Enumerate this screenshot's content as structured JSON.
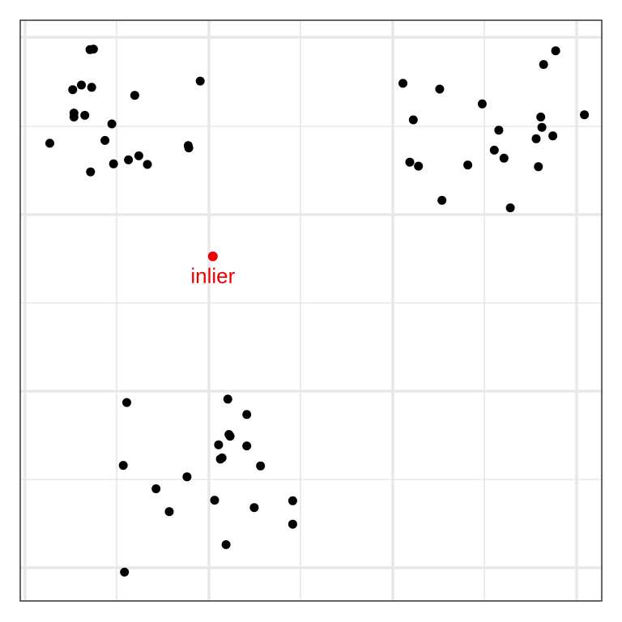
{
  "chart_data": {
    "type": "scatter",
    "grid": true,
    "xlim": [
      0,
      1
    ],
    "ylim": [
      0,
      1
    ],
    "colors": {
      "points": "#000000",
      "highlight": "#ee0000",
      "grid": "#e8e8e8",
      "frame": "#333333",
      "background": "#ffffff"
    },
    "points": [
      {
        "x": 0.113,
        "y": 0.957
      },
      {
        "x": 0.119,
        "y": 0.958
      },
      {
        "x": 0.083,
        "y": 0.887
      },
      {
        "x": 0.098,
        "y": 0.895
      },
      {
        "x": 0.116,
        "y": 0.891
      },
      {
        "x": 0.085,
        "y": 0.846
      },
      {
        "x": 0.085,
        "y": 0.839
      },
      {
        "x": 0.104,
        "y": 0.842
      },
      {
        "x": 0.043,
        "y": 0.793
      },
      {
        "x": 0.151,
        "y": 0.827
      },
      {
        "x": 0.191,
        "y": 0.877
      },
      {
        "x": 0.305,
        "y": 0.902
      },
      {
        "x": 0.139,
        "y": 0.798
      },
      {
        "x": 0.114,
        "y": 0.743
      },
      {
        "x": 0.154,
        "y": 0.757
      },
      {
        "x": 0.18,
        "y": 0.764
      },
      {
        "x": 0.198,
        "y": 0.771
      },
      {
        "x": 0.213,
        "y": 0.756
      },
      {
        "x": 0.284,
        "y": 0.789
      },
      {
        "x": 0.285,
        "y": 0.785
      },
      {
        "x": 0.658,
        "y": 0.898
      },
      {
        "x": 0.722,
        "y": 0.888
      },
      {
        "x": 0.676,
        "y": 0.834
      },
      {
        "x": 0.796,
        "y": 0.862
      },
      {
        "x": 0.924,
        "y": 0.955
      },
      {
        "x": 0.903,
        "y": 0.931
      },
      {
        "x": 0.974,
        "y": 0.843
      },
      {
        "x": 0.898,
        "y": 0.839
      },
      {
        "x": 0.9,
        "y": 0.821
      },
      {
        "x": 0.919,
        "y": 0.806
      },
      {
        "x": 0.825,
        "y": 0.816
      },
      {
        "x": 0.89,
        "y": 0.801
      },
      {
        "x": 0.817,
        "y": 0.781
      },
      {
        "x": 0.834,
        "y": 0.767
      },
      {
        "x": 0.67,
        "y": 0.76
      },
      {
        "x": 0.685,
        "y": 0.753
      },
      {
        "x": 0.771,
        "y": 0.755
      },
      {
        "x": 0.894,
        "y": 0.752
      },
      {
        "x": 0.726,
        "y": 0.693
      },
      {
        "x": 0.845,
        "y": 0.68
      },
      {
        "x": 0.353,
        "y": 0.345
      },
      {
        "x": 0.177,
        "y": 0.339
      },
      {
        "x": 0.386,
        "y": 0.318
      },
      {
        "x": 0.355,
        "y": 0.283
      },
      {
        "x": 0.357,
        "y": 0.28
      },
      {
        "x": 0.337,
        "y": 0.265
      },
      {
        "x": 0.386,
        "y": 0.263
      },
      {
        "x": 0.34,
        "y": 0.24
      },
      {
        "x": 0.343,
        "y": 0.242
      },
      {
        "x": 0.171,
        "y": 0.229
      },
      {
        "x": 0.41,
        "y": 0.228
      },
      {
        "x": 0.282,
        "y": 0.209
      },
      {
        "x": 0.228,
        "y": 0.188
      },
      {
        "x": 0.33,
        "y": 0.168
      },
      {
        "x": 0.466,
        "y": 0.167
      },
      {
        "x": 0.399,
        "y": 0.155
      },
      {
        "x": 0.251,
        "y": 0.148
      },
      {
        "x": 0.466,
        "y": 0.126
      },
      {
        "x": 0.35,
        "y": 0.09
      },
      {
        "x": 0.173,
        "y": 0.042
      }
    ],
    "highlight": {
      "x": 0.327,
      "y": 0.595,
      "label": "inlier"
    }
  }
}
